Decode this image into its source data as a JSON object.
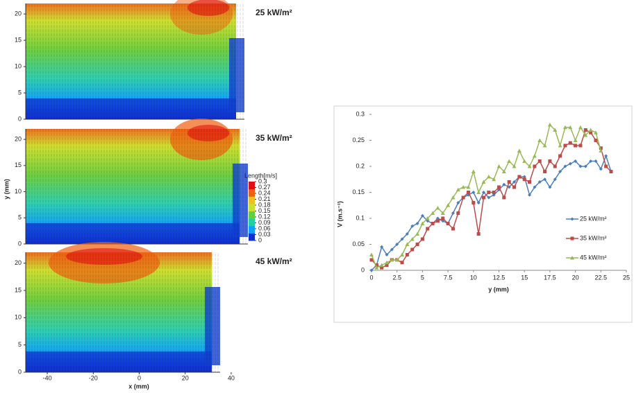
{
  "chart_data": [
    {
      "type": "field",
      "x_label": "x (mm)",
      "y_label": "y (mm)",
      "xlim": [
        -50,
        50
      ],
      "xticks": [
        -40,
        -20,
        0,
        20,
        40
      ],
      "panels": [
        {
          "label": "25 kW/m²",
          "ylim": [
            0,
            22
          ],
          "yticks": [
            0,
            5,
            10,
            15,
            20
          ]
        },
        {
          "label": "35 kW/m²",
          "ylim": [
            0,
            22
          ],
          "yticks": [
            0,
            5,
            10,
            15,
            20
          ]
        },
        {
          "label": "45 kW/m²",
          "ylim": [
            0,
            22
          ],
          "yticks": [
            0,
            5,
            10,
            15,
            20
          ]
        }
      ],
      "colorbar": {
        "title": "Length[m/s]",
        "lim": [
          0,
          0.3
        ],
        "ticks": [
          0.3,
          0.27,
          0.24,
          0.21,
          0.18,
          0.15,
          0.12,
          0.09,
          0.06,
          0.03,
          0
        ],
        "colors": [
          "#1030d0",
          "#10a0ff",
          "#20d0a0",
          "#60d040",
          "#c8e030",
          "#f0c020",
          "#f06010",
          "#e01010"
        ]
      }
    },
    {
      "type": "line",
      "x_label": "y (mm)",
      "y_label": "V (m.s⁻¹)",
      "x": [
        0,
        0.5,
        1,
        1.5,
        2,
        2.5,
        3,
        3.5,
        4,
        4.5,
        5,
        5.5,
        6,
        6.5,
        7,
        7.5,
        8,
        8.5,
        9,
        9.5,
        10,
        10.5,
        11,
        11.5,
        12,
        12.5,
        13,
        13.5,
        14,
        14.5,
        15,
        15.5,
        16,
        16.5,
        17,
        17.5,
        18,
        18.5,
        19,
        19.5,
        20,
        20.5,
        21,
        21.5,
        22,
        22.5,
        23,
        23.5
      ],
      "series": [
        {
          "name": "25 kW/m²",
          "color": "#4a7ebb",
          "marker": "diamond",
          "values": [
            0,
            0.01,
            0.045,
            0.03,
            0.04,
            0.05,
            0.06,
            0.07,
            0.085,
            0.09,
            0.105,
            0.095,
            0.09,
            0.1,
            0.095,
            0.09,
            0.11,
            0.13,
            0.14,
            0.145,
            0.15,
            0.13,
            0.15,
            0.14,
            0.145,
            0.155,
            0.165,
            0.16,
            0.17,
            0.18,
            0.18,
            0.145,
            0.16,
            0.17,
            0.175,
            0.16,
            0.175,
            0.19,
            0.2,
            0.205,
            0.21,
            0.2,
            0.2,
            0.21,
            0.21,
            0.195,
            0.22,
            0.19
          ]
        },
        {
          "name": "35 kW/m²",
          "color": "#be4b48",
          "marker": "square",
          "values": [
            0.02,
            0.01,
            0.005,
            0.01,
            0.02,
            0.02,
            0.015,
            0.03,
            0.04,
            0.05,
            0.06,
            0.08,
            0.09,
            0.095,
            0.1,
            0.09,
            0.08,
            0.11,
            0.14,
            0.15,
            0.13,
            0.07,
            0.14,
            0.15,
            0.15,
            0.16,
            0.14,
            0.17,
            0.16,
            0.18,
            0.175,
            0.17,
            0.2,
            0.21,
            0.19,
            0.21,
            0.2,
            0.22,
            0.24,
            0.245,
            0.24,
            0.24,
            0.27,
            0.265,
            0.25,
            0.235,
            0.2,
            0.19
          ]
        },
        {
          "name": "45 kW/m²",
          "color": "#98b954",
          "marker": "triangle",
          "values": [
            0.03,
            0.005,
            0.01,
            0.015,
            0.02,
            0.02,
            0.03,
            0.05,
            0.06,
            0.07,
            0.09,
            0.1,
            0.11,
            0.12,
            0.11,
            0.125,
            0.14,
            0.155,
            0.16,
            0.16,
            0.19,
            0.15,
            0.17,
            0.18,
            0.175,
            0.2,
            0.19,
            0.21,
            0.2,
            0.23,
            0.21,
            0.2,
            0.22,
            0.25,
            0.24,
            0.28,
            0.27,
            0.24,
            0.275,
            0.275,
            0.25,
            0.275,
            0.26,
            0.27,
            0.265,
            0.23,
            null,
            null
          ]
        }
      ],
      "xlim": [
        0,
        25
      ],
      "xticks": [
        0,
        2.5,
        5,
        7.5,
        10,
        12.5,
        15,
        17.5,
        20,
        22.5,
        25
      ],
      "ylim": [
        0,
        0.3
      ],
      "yticks": [
        0,
        0.05,
        0.1,
        0.15,
        0.2,
        0.25,
        0.3
      ],
      "legend": "right"
    }
  ]
}
